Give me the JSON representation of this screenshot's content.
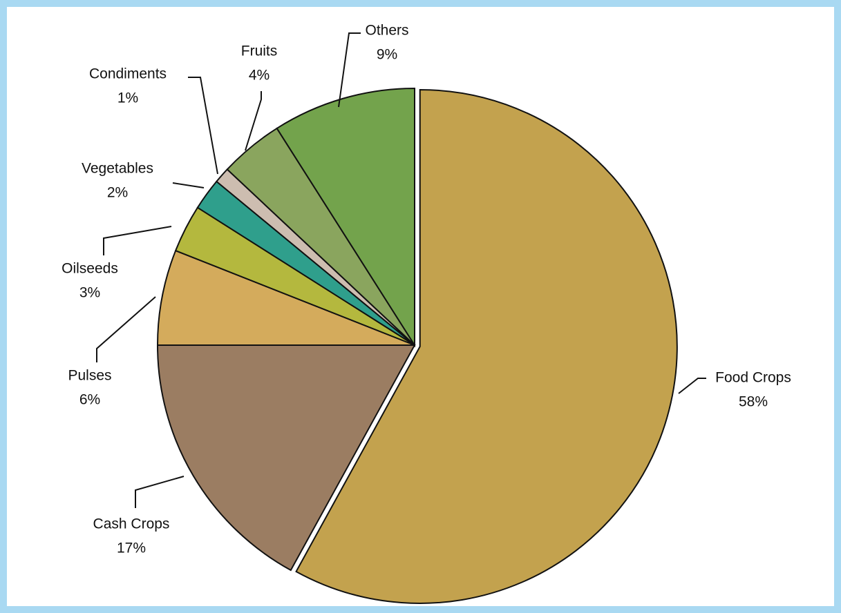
{
  "chart_data": {
    "type": "pie",
    "categories": [
      "Food Crops",
      "Cash Crops",
      "Pulses",
      "Oilseeds",
      "Vegetables",
      "Condiments",
      "Fruits",
      "Others"
    ],
    "values": [
      58,
      17,
      6,
      3,
      2,
      1,
      4,
      9
    ],
    "value_labels": [
      "58%",
      "17%",
      "6%",
      "3%",
      "2%",
      "1%",
      "4%",
      "9%"
    ],
    "colors": [
      "#c3a24e",
      "#9b7d62",
      "#d4ab5c",
      "#b4b83e",
      "#2f9f8c",
      "#cdbdb0",
      "#8aa55e",
      "#73a34c"
    ]
  }
}
